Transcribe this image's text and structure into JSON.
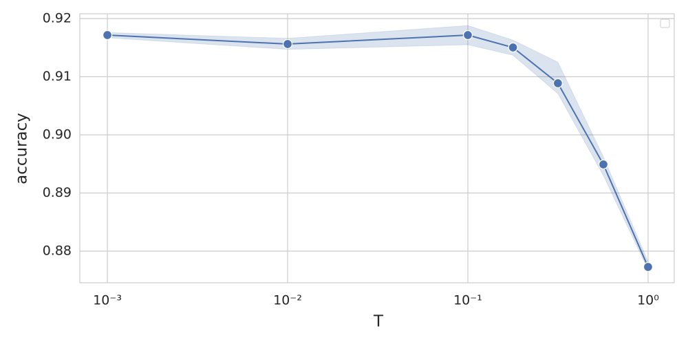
{
  "chart_data": {
    "type": "line",
    "x_label": "T",
    "y_label": "accuracy",
    "x": [
      0.001,
      0.01,
      0.1,
      0.178,
      0.316,
      0.565,
      1.0
    ],
    "series": [
      {
        "color": "#4c72b0",
        "values": [
          0.91716,
          0.91562,
          0.91716,
          0.91503,
          0.90888,
          0.89491,
          0.87728
        ],
        "upper": [
          0.9176,
          0.9166,
          0.9188,
          0.9163,
          0.9125,
          0.8962,
          0.8782
        ],
        "lower": [
          0.9167,
          0.9147,
          0.9155,
          0.9137,
          0.9071,
          0.893,
          0.8768
        ]
      }
    ],
    "xscale": "log",
    "xlim": [
      0.000703,
      1.397
    ],
    "ylim": [
      0.87456,
      0.92083
    ],
    "xticks": [
      {
        "value": 0.001,
        "label": "10⁻³"
      },
      {
        "value": 0.01,
        "label": "10⁻²"
      },
      {
        "value": 0.1,
        "label": "10⁻¹"
      },
      {
        "value": 1,
        "label": "10⁰"
      }
    ],
    "yticks": [
      0.88,
      0.89,
      {
        "value": 0.9,
        "label": "0.90"
      },
      0.91,
      0.92
    ],
    "grid": true,
    "legend": "upper right"
  }
}
